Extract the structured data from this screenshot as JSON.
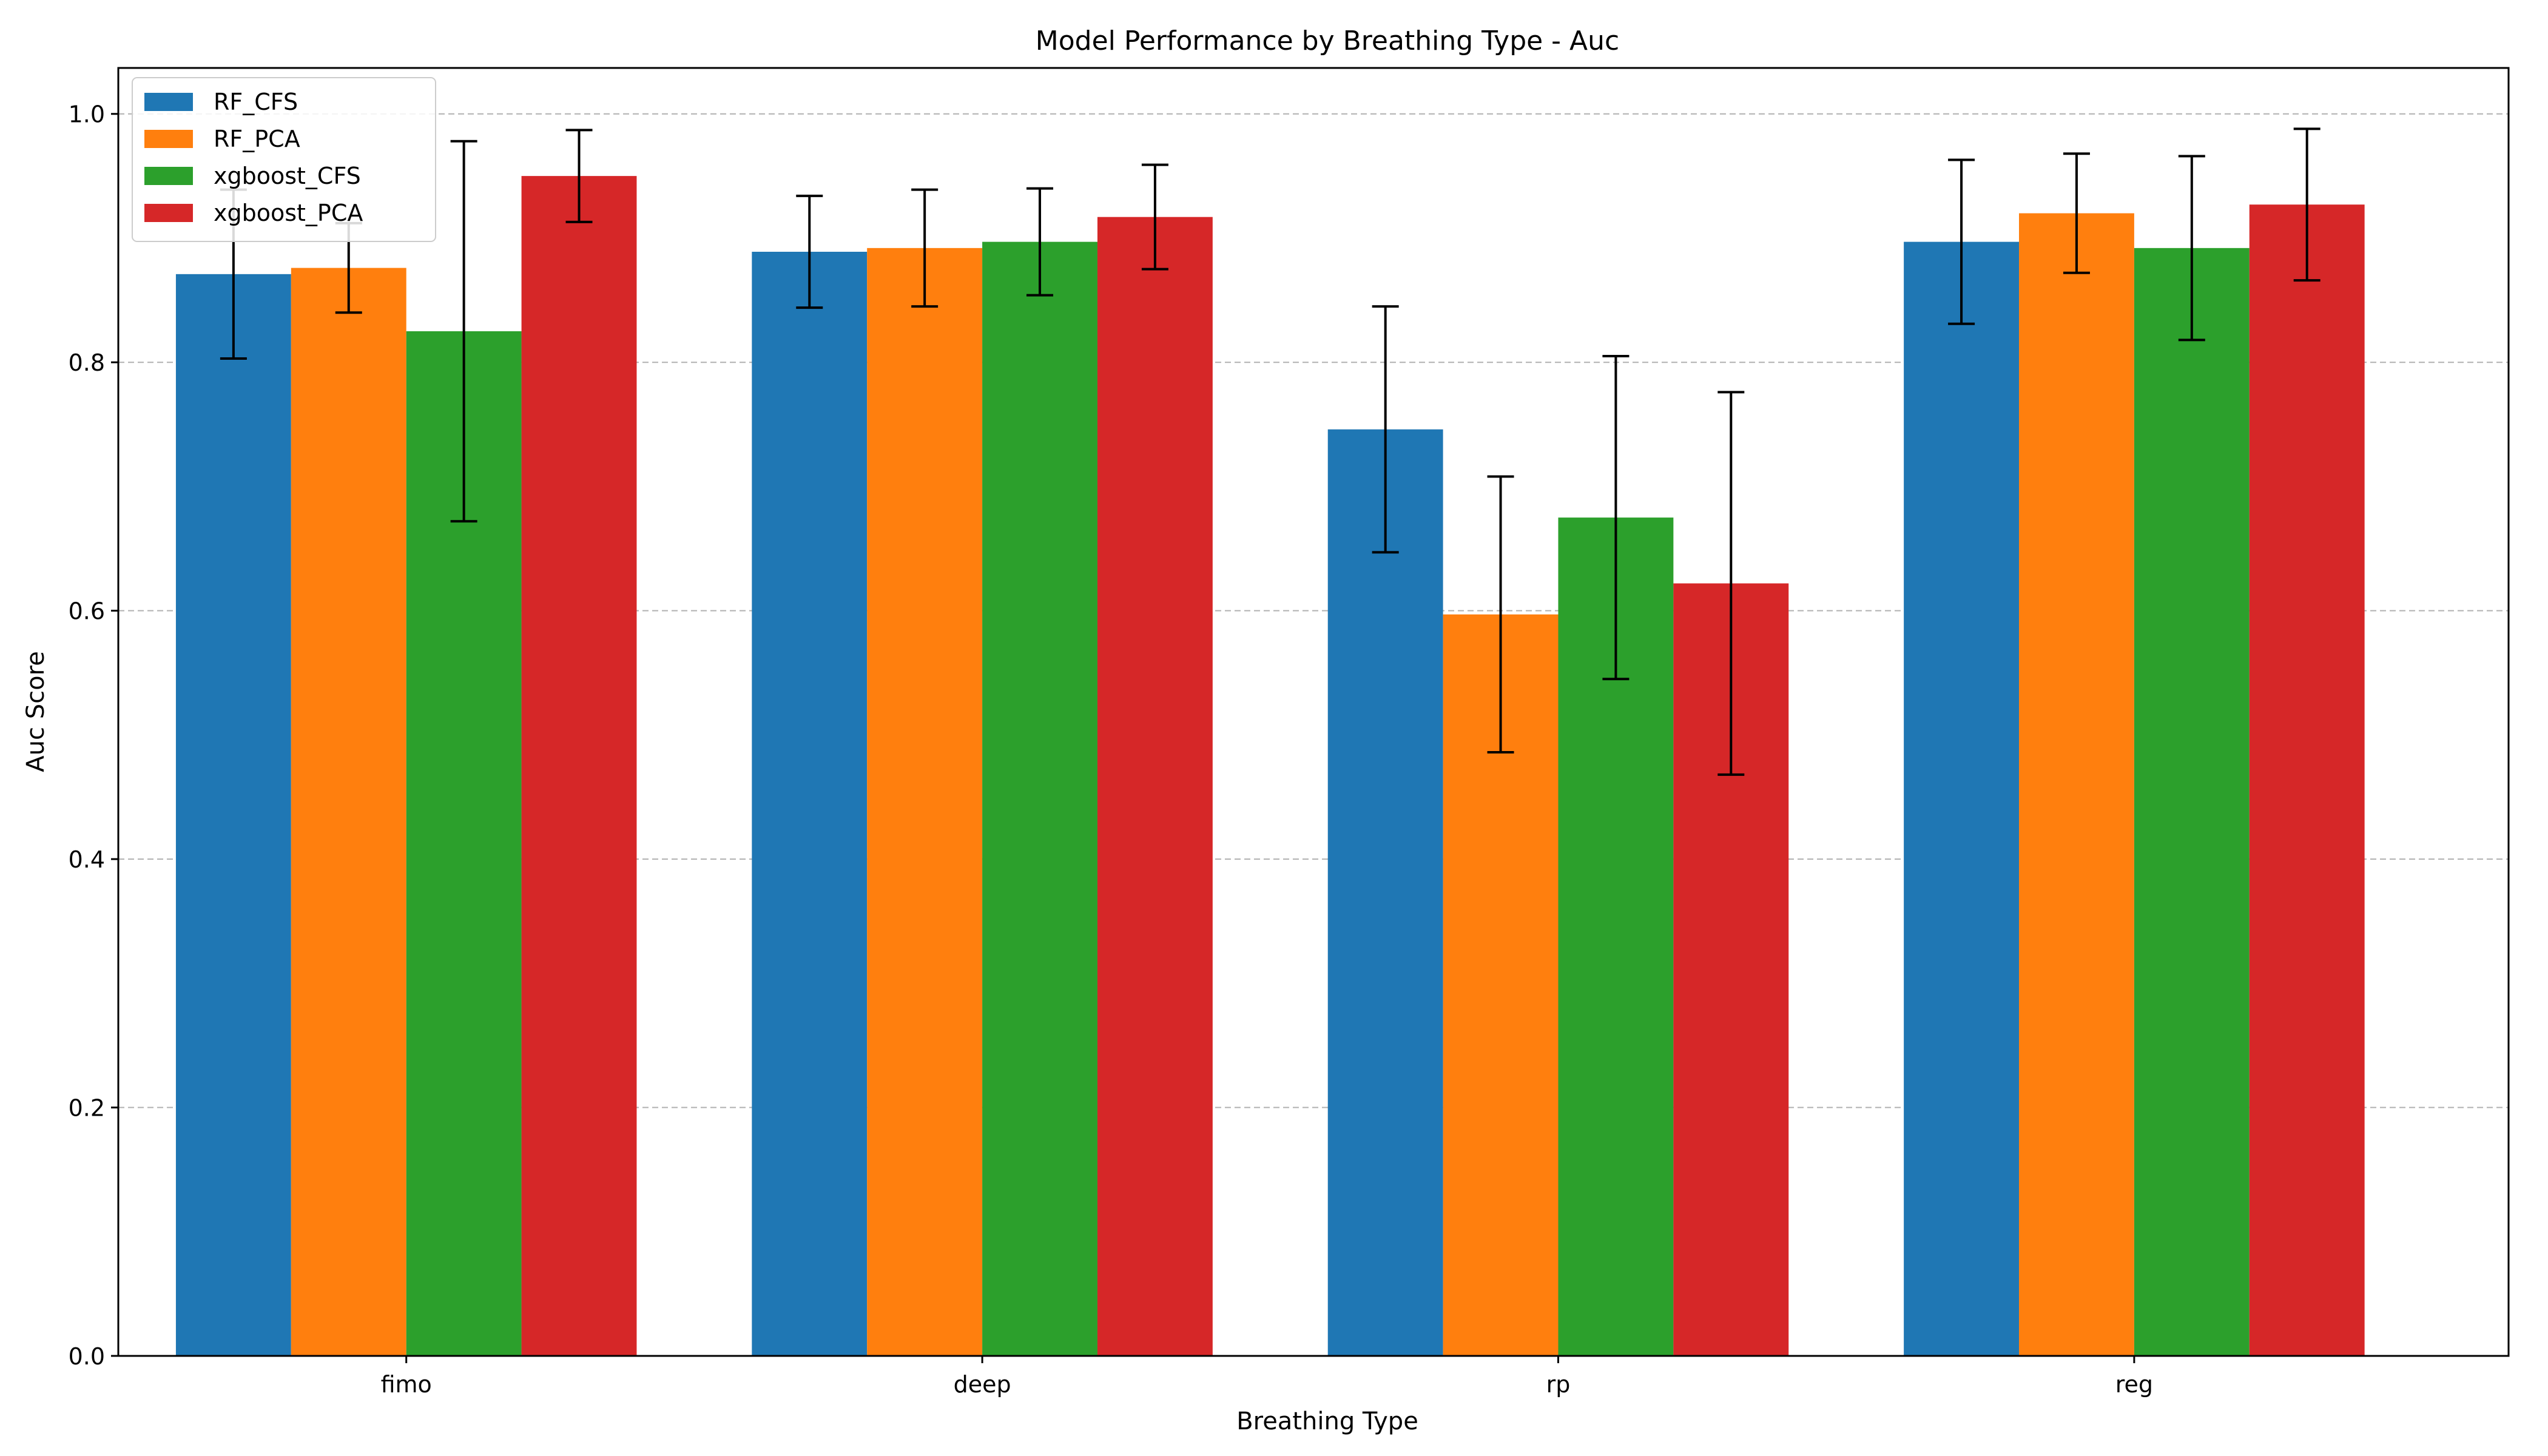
{
  "chart_data": {
    "type": "bar",
    "title": "Model Performance by Breathing Type - Auc",
    "xlabel": "Breathing Type",
    "ylabel": "Auc Score",
    "ylim": [
      0,
      1.037
    ],
    "yticks": [
      0.0,
      0.2,
      0.4,
      0.6,
      0.8,
      1.0
    ],
    "ytick_labels": [
      "0.0",
      "0.2",
      "0.4",
      "0.6",
      "0.8",
      "1.0"
    ],
    "grid": "y-dashed",
    "legend": "top-left",
    "categories": [
      "fimo",
      "deep",
      "rp",
      "reg"
    ],
    "series": [
      {
        "name": "RF_CFS",
        "color": "#1f77b4",
        "values": [
          0.871,
          0.889,
          0.746,
          0.897
        ],
        "errors": [
          0.068,
          0.045,
          0.099,
          0.066
        ]
      },
      {
        "name": "RF_PCA",
        "color": "#ff7f0e",
        "values": [
          0.876,
          0.892,
          0.597,
          0.92
        ],
        "errors": [
          0.036,
          0.047,
          0.111,
          0.048
        ]
      },
      {
        "name": "xgboost_CFS",
        "color": "#2ca02c",
        "values": [
          0.825,
          0.897,
          0.675,
          0.892
        ],
        "errors": [
          0.153,
          0.043,
          0.13,
          0.074
        ]
      },
      {
        "name": "xgboost_PCA",
        "color": "#d62728",
        "values": [
          0.95,
          0.917,
          0.622,
          0.927
        ],
        "errors": [
          0.037,
          0.042,
          0.154,
          0.061
        ]
      }
    ]
  }
}
